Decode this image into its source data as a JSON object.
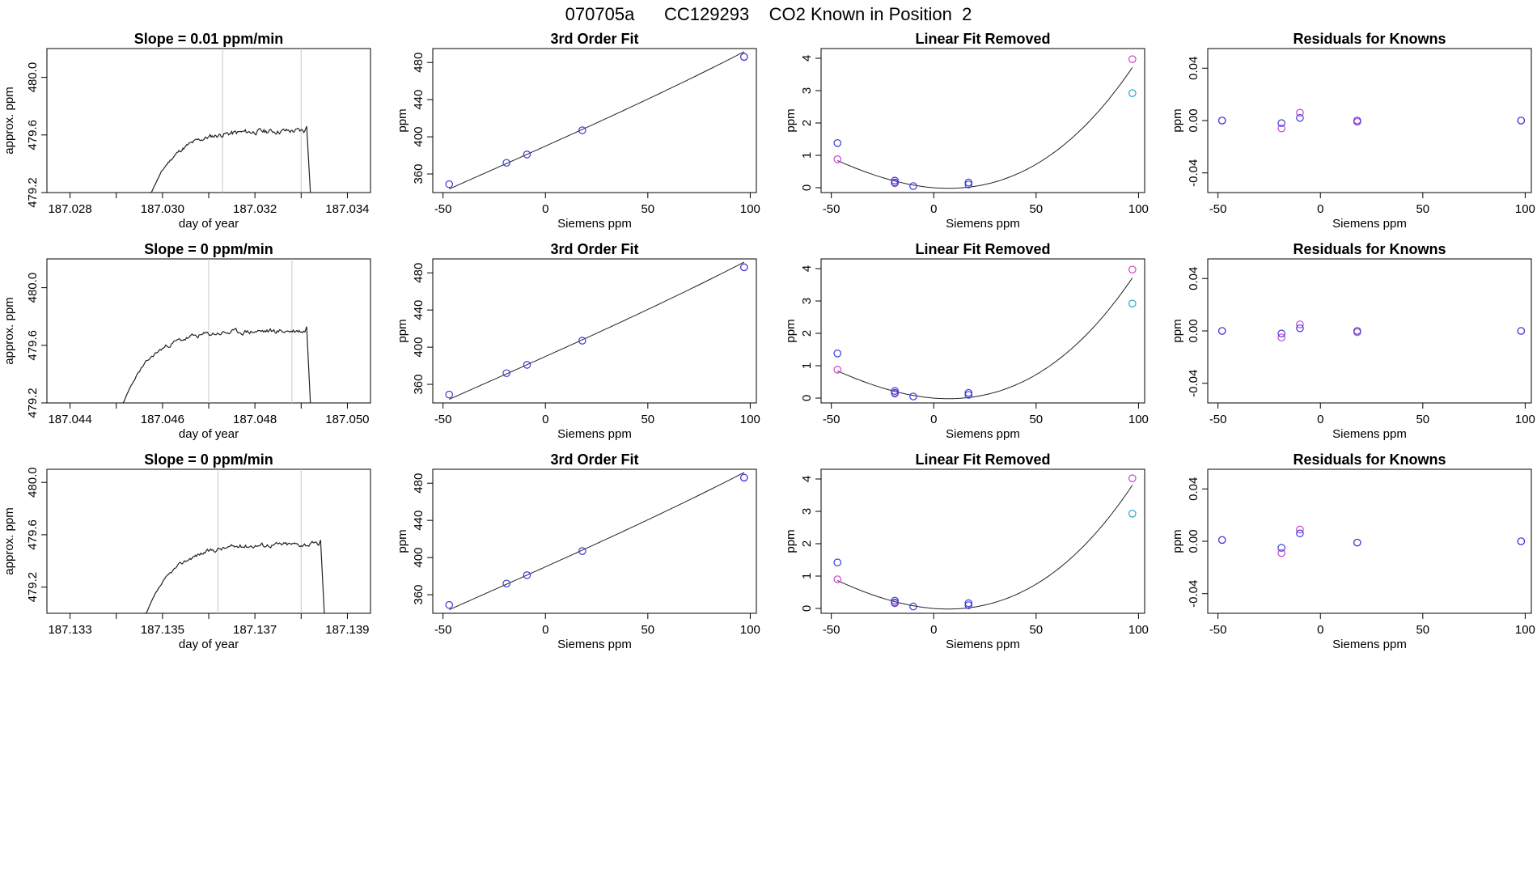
{
  "header": {
    "title_text": "070705a      CC129293    CO2 Known in Position  2"
  },
  "colors": {
    "fit_line": "#222222",
    "known_a": "#3a3adb",
    "known_b": "#cc44cc",
    "unknown": "#22aacc",
    "vline": "#c8c8c8",
    "seg_red": "#e05050"
  },
  "chart_data": [
    {
      "type": "line",
      "row": 0,
      "col": 0,
      "title": "Slope =  0.01  ppm/min",
      "xlabel": "day of year",
      "ylabel": "approx. ppm",
      "xlim": [
        187.0275,
        187.0345
      ],
      "ylim": [
        479.2,
        480.2
      ],
      "xticks": [
        187.028,
        187.029,
        187.03,
        187.031,
        187.032,
        187.033,
        187.034
      ],
      "xtick_labels": [
        "187.028",
        "",
        "187.030",
        "",
        "187.032",
        "",
        "187.034"
      ],
      "yticks": [
        479.2,
        479.6,
        480.0
      ],
      "ytick_labels": [
        "479.2",
        "479.6",
        "480.0"
      ],
      "vlines": [
        187.0313,
        187.033
      ],
      "trace": {
        "x_start": 187.0297,
        "x_end": 187.0332,
        "plateau": 479.63,
        "rise": 0.00055,
        "seed": 11
      }
    },
    {
      "type": "scatter",
      "row": 0,
      "col": 1,
      "title": "3rd Order Fit",
      "xlabel": "Siemens ppm",
      "ylabel": "ppm",
      "xlim": [
        -55,
        103
      ],
      "ylim": [
        340,
        495
      ],
      "xticks": [
        -50,
        0,
        50,
        100
      ],
      "yticks": [
        360,
        400,
        440,
        480
      ],
      "points_a": [
        [
          -47,
          349
        ],
        [
          -19,
          372
        ],
        [
          -9,
          381
        ],
        [
          18,
          407
        ],
        [
          97,
          486
        ]
      ],
      "points_b": [
        [
          97,
          486
        ]
      ],
      "curve": {
        "c0": 390,
        "c1": 0.99,
        "c2": 0.0003,
        "c3": 2.9e-06
      }
    },
    {
      "type": "scatter",
      "row": 0,
      "col": 2,
      "title": "Linear Fit Removed",
      "xlabel": "Siemens ppm",
      "ylabel": "ppm",
      "xlim": [
        -55,
        103
      ],
      "ylim": [
        -0.15,
        4.3
      ],
      "xticks": [
        -50,
        0,
        50,
        100
      ],
      "yticks": [
        0,
        1,
        2,
        3,
        4
      ],
      "points_a": [
        [
          -47,
          1.38
        ],
        [
          -19,
          0.22
        ],
        [
          -19,
          0.16
        ],
        [
          -10,
          0.05
        ],
        [
          17,
          0.16
        ],
        [
          17,
          0.1
        ]
      ],
      "points_b": [
        [
          -47,
          0.88
        ],
        [
          -19,
          0.14
        ],
        [
          97,
          3.97
        ]
      ],
      "points_c": [
        [
          97,
          2.92
        ]
      ],
      "curve": {
        "c0": 0,
        "c1": -0.005,
        "c2": 0.00033,
        "c3": 1.2e-06
      }
    },
    {
      "type": "scatter",
      "row": 0,
      "col": 3,
      "title": "Residuals for Knowns",
      "xlabel": "Siemens ppm",
      "ylabel": "ppm",
      "xlim": [
        -55,
        103
      ],
      "ylim": [
        -0.055,
        0.055
      ],
      "xticks": [
        -50,
        0,
        50,
        100
      ],
      "yticks": [
        -0.04,
        0.0,
        0.04
      ],
      "ytick_labels": [
        "-0.04",
        "0.00",
        "0.04"
      ],
      "points_a": [
        [
          -48,
          0.0
        ],
        [
          -19,
          -0.002
        ],
        [
          -10,
          0.002
        ],
        [
          18,
          0.0
        ],
        [
          98,
          0.0
        ]
      ],
      "points_b": [
        [
          -48,
          0.0
        ],
        [
          -19,
          -0.006
        ],
        [
          -10,
          0.006
        ],
        [
          18,
          -0.001
        ],
        [
          98,
          0.0
        ]
      ]
    },
    {
      "type": "line",
      "row": 1,
      "col": 0,
      "title": "Slope =  0  ppm/min",
      "xlabel": "day of year",
      "ylabel": "approx. ppm",
      "xlim": [
        187.0435,
        187.0505
      ],
      "ylim": [
        479.2,
        480.2
      ],
      "xticks": [
        187.044,
        187.045,
        187.046,
        187.047,
        187.048,
        187.049,
        187.05
      ],
      "xtick_labels": [
        "187.044",
        "",
        "187.046",
        "",
        "187.048",
        "",
        "187.050"
      ],
      "yticks": [
        479.2,
        479.6,
        480.0
      ],
      "ytick_labels": [
        "479.2",
        "479.6",
        "480.0"
      ],
      "vlines": [
        187.047,
        187.0488
      ],
      "trace": {
        "x_start": 187.0451,
        "x_end": 187.0492,
        "plateau": 479.7,
        "rise": 0.0006,
        "seed": 23
      }
    },
    {
      "type": "scatter",
      "row": 1,
      "col": 1,
      "title": "3rd Order Fit",
      "xlabel": "Siemens ppm",
      "ylabel": "ppm",
      "xlim": [
        -55,
        103
      ],
      "ylim": [
        340,
        495
      ],
      "xticks": [
        -50,
        0,
        50,
        100
      ],
      "yticks": [
        360,
        400,
        440,
        480
      ],
      "points_a": [
        [
          -47,
          349
        ],
        [
          -19,
          372
        ],
        [
          -9,
          381
        ],
        [
          18,
          407
        ],
        [
          97,
          486
        ]
      ],
      "points_b": [
        [
          97,
          486
        ]
      ],
      "curve": {
        "c0": 390,
        "c1": 0.99,
        "c2": 0.0003,
        "c3": 2.9e-06
      }
    },
    {
      "type": "scatter",
      "row": 1,
      "col": 2,
      "title": "Linear Fit Removed",
      "xlabel": "Siemens ppm",
      "ylabel": "ppm",
      "xlim": [
        -55,
        103
      ],
      "ylim": [
        -0.15,
        4.3
      ],
      "xticks": [
        -50,
        0,
        50,
        100
      ],
      "yticks": [
        0,
        1,
        2,
        3,
        4
      ],
      "points_a": [
        [
          -47,
          1.38
        ],
        [
          -19,
          0.22
        ],
        [
          -19,
          0.16
        ],
        [
          -10,
          0.05
        ],
        [
          17,
          0.16
        ],
        [
          17,
          0.1
        ]
      ],
      "points_b": [
        [
          -47,
          0.88
        ],
        [
          -19,
          0.14
        ],
        [
          97,
          3.97
        ]
      ],
      "points_c": [
        [
          97,
          2.92
        ]
      ],
      "curve": {
        "c0": 0,
        "c1": -0.005,
        "c2": 0.00033,
        "c3": 1.2e-06
      }
    },
    {
      "type": "scatter",
      "row": 1,
      "col": 3,
      "title": "Residuals for Knowns",
      "xlabel": "Siemens ppm",
      "ylabel": "ppm",
      "xlim": [
        -55,
        103
      ],
      "ylim": [
        -0.055,
        0.055
      ],
      "xticks": [
        -50,
        0,
        50,
        100
      ],
      "yticks": [
        -0.04,
        0.0,
        0.04
      ],
      "ytick_labels": [
        "-0.04",
        "0.00",
        "0.04"
      ],
      "points_a": [
        [
          -48,
          0.0
        ],
        [
          -19,
          -0.002
        ],
        [
          -10,
          0.002
        ],
        [
          18,
          0.0
        ],
        [
          98,
          0.0
        ]
      ],
      "points_b": [
        [
          -48,
          0.0
        ],
        [
          -19,
          -0.005
        ],
        [
          -10,
          0.005
        ],
        [
          18,
          -0.001
        ],
        [
          98,
          0.0
        ]
      ]
    },
    {
      "type": "line",
      "row": 2,
      "col": 0,
      "title": "Slope =  0  ppm/min",
      "xlabel": "day of year",
      "ylabel": "approx. ppm",
      "xlim": [
        187.1325,
        187.1395
      ],
      "ylim": [
        479.0,
        480.1
      ],
      "xticks": [
        187.133,
        187.134,
        187.135,
        187.136,
        187.137,
        187.138,
        187.139
      ],
      "xtick_labels": [
        "187.133",
        "",
        "187.135",
        "",
        "187.137",
        "",
        "187.139"
      ],
      "yticks": [
        479.2,
        479.6,
        480.0
      ],
      "ytick_labels": [
        "479.2",
        "479.6",
        "480.0"
      ],
      "vlines": [
        187.1362,
        187.138
      ],
      "trace": {
        "x_start": 187.1346,
        "x_end": 187.1385,
        "plateau": 479.53,
        "rise": 0.0006,
        "seed": 37
      }
    },
    {
      "type": "scatter",
      "row": 2,
      "col": 1,
      "title": "3rd Order Fit",
      "xlabel": "Siemens ppm",
      "ylabel": "ppm",
      "xlim": [
        -55,
        103
      ],
      "ylim": [
        340,
        495
      ],
      "xticks": [
        -50,
        0,
        50,
        100
      ],
      "yticks": [
        360,
        400,
        440,
        480
      ],
      "points_a": [
        [
          -47,
          349
        ],
        [
          -19,
          372
        ],
        [
          -9,
          381
        ],
        [
          18,
          407
        ],
        [
          97,
          486
        ]
      ],
      "points_b": [
        [
          97,
          486
        ]
      ],
      "curve": {
        "c0": 390,
        "c1": 0.99,
        "c2": 0.0003,
        "c3": 2.9e-06
      }
    },
    {
      "type": "scatter",
      "row": 2,
      "col": 2,
      "title": "Linear Fit Removed",
      "xlabel": "Siemens ppm",
      "ylabel": "ppm",
      "xlim": [
        -55,
        103
      ],
      "ylim": [
        -0.15,
        4.3
      ],
      "xticks": [
        -50,
        0,
        50,
        100
      ],
      "yticks": [
        0,
        1,
        2,
        3,
        4
      ],
      "points_a": [
        [
          -47,
          1.42
        ],
        [
          -19,
          0.24
        ],
        [
          -19,
          0.18
        ],
        [
          -10,
          0.06
        ],
        [
          17,
          0.16
        ],
        [
          17,
          0.1
        ]
      ],
      "points_b": [
        [
          -47,
          0.9
        ],
        [
          -19,
          0.16
        ],
        [
          97,
          4.02
        ]
      ],
      "points_c": [
        [
          97,
          2.93
        ]
      ],
      "curve": {
        "c0": 0,
        "c1": -0.005,
        "c2": 0.00034,
        "c3": 1.2e-06
      }
    },
    {
      "type": "scatter",
      "row": 2,
      "col": 3,
      "title": "Residuals for Knowns",
      "xlabel": "Siemens ppm",
      "ylabel": "ppm",
      "xlim": [
        -55,
        103
      ],
      "ylim": [
        -0.055,
        0.055
      ],
      "xticks": [
        -50,
        0,
        50,
        100
      ],
      "yticks": [
        -0.04,
        0.0,
        0.04
      ],
      "ytick_labels": [
        "-0.04",
        "0.00",
        "0.04"
      ],
      "points_a": [
        [
          -48,
          0.001
        ],
        [
          -19,
          -0.005
        ],
        [
          -10,
          0.006
        ],
        [
          18,
          -0.001
        ],
        [
          98,
          0.0
        ]
      ],
      "points_b": [
        [
          -48,
          0.001
        ],
        [
          -19,
          -0.009
        ],
        [
          -10,
          0.009
        ],
        [
          18,
          -0.001
        ],
        [
          98,
          0.0
        ]
      ]
    }
  ]
}
